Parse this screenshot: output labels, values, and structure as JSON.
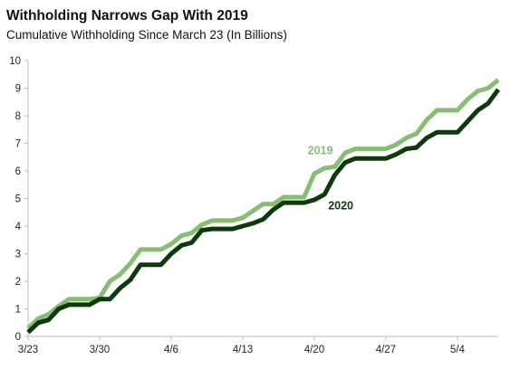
{
  "chart_data": {
    "type": "line",
    "title": "Withholding Narrows Gap With 2019",
    "subtitle": "Cumulative Withholding Since March 23  (In Billions)",
    "xlabel": "",
    "ylabel": "",
    "x_tick_labels": [
      "3/23",
      "3/30",
      "4/6",
      "4/13",
      "4/20",
      "4/27",
      "5/4"
    ],
    "y_tick_labels": [
      "0",
      "1",
      "2",
      "3",
      "4",
      "5",
      "6",
      "7",
      "8",
      "9",
      "10"
    ],
    "xlim": [
      "3/23",
      "5/8"
    ],
    "ylim": [
      0,
      10
    ],
    "grid": false,
    "legend": "none",
    "x": [
      "3/23",
      "3/24",
      "3/25",
      "3/26",
      "3/27",
      "3/28",
      "3/29",
      "3/30",
      "3/31",
      "4/1",
      "4/2",
      "4/3",
      "4/4",
      "4/5",
      "4/6",
      "4/7",
      "4/8",
      "4/9",
      "4/10",
      "4/11",
      "4/12",
      "4/13",
      "4/14",
      "4/15",
      "4/16",
      "4/17",
      "4/18",
      "4/19",
      "4/20",
      "4/21",
      "4/22",
      "4/23",
      "4/24",
      "4/25",
      "4/26",
      "4/27",
      "4/28",
      "4/29",
      "4/30",
      "5/1",
      "5/2",
      "5/3",
      "5/4",
      "5/5",
      "5/6",
      "5/7",
      "5/8"
    ],
    "series": [
      {
        "name": "2019",
        "color": "#86bf73",
        "values": [
          0.3,
          0.65,
          0.8,
          1.1,
          1.35,
          1.35,
          1.35,
          1.4,
          2.0,
          2.25,
          2.65,
          3.15,
          3.15,
          3.15,
          3.35,
          3.65,
          3.75,
          4.05,
          4.2,
          4.2,
          4.2,
          4.3,
          4.55,
          4.8,
          4.8,
          5.05,
          5.05,
          5.05,
          5.9,
          6.1,
          6.15,
          6.65,
          6.8,
          6.8,
          6.8,
          6.8,
          6.95,
          7.2,
          7.35,
          7.85,
          8.2,
          8.2,
          8.2,
          8.6,
          8.9,
          9.0,
          9.3
        ]
      },
      {
        "name": "2020",
        "color": "#0d3a0d",
        "values": [
          0.15,
          0.5,
          0.6,
          1.0,
          1.15,
          1.15,
          1.15,
          1.35,
          1.35,
          1.75,
          2.05,
          2.6,
          2.6,
          2.6,
          3.0,
          3.3,
          3.4,
          3.85,
          3.9,
          3.9,
          3.9,
          4.0,
          4.1,
          4.25,
          4.6,
          4.85,
          4.85,
          4.85,
          4.95,
          5.15,
          5.85,
          6.3,
          6.45,
          6.45,
          6.45,
          6.45,
          6.6,
          6.8,
          6.85,
          7.2,
          7.4,
          7.4,
          7.4,
          7.8,
          8.2,
          8.45,
          8.95
        ]
      }
    ]
  }
}
